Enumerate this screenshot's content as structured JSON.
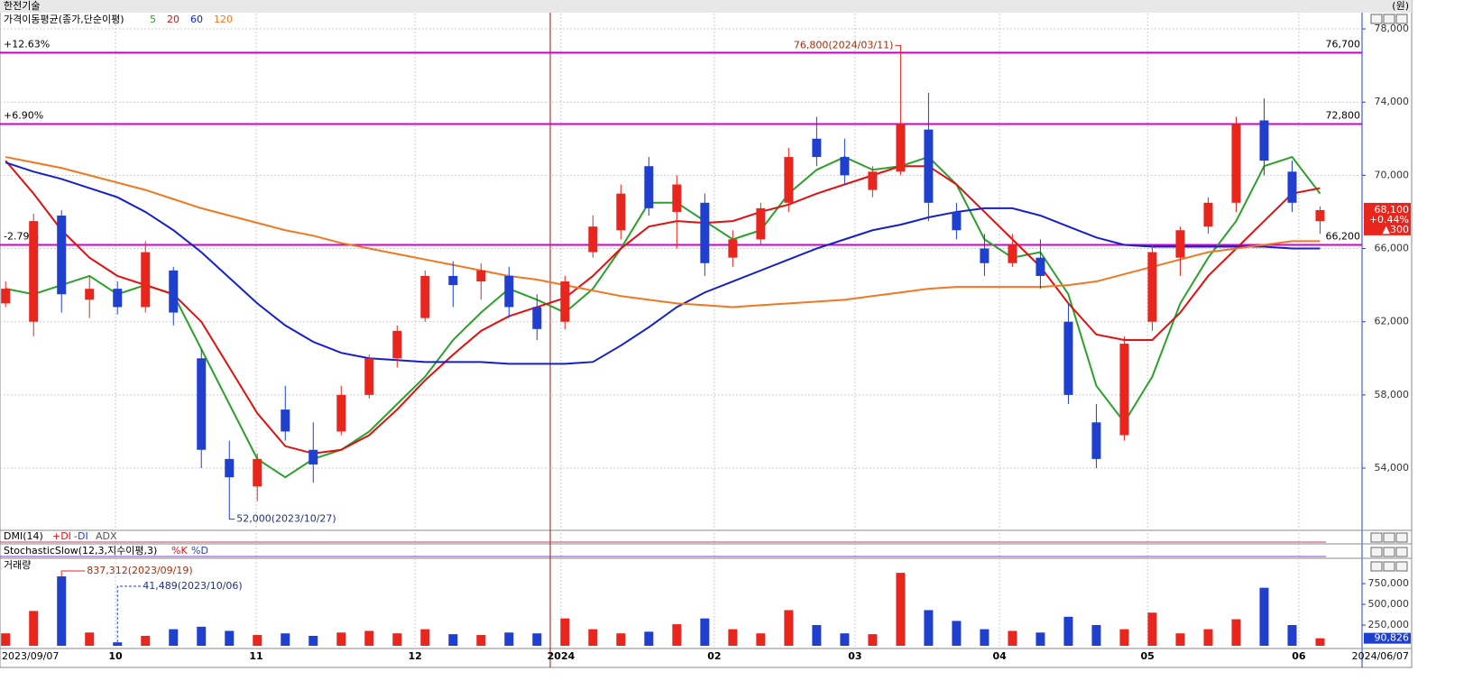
{
  "title": "한전기술",
  "unit": "(원)",
  "chart_data": {
    "type": "candlestick",
    "legend_title": "가격이동평균(종가,단순이평)",
    "xlim": [
      -0.2,
      48.5
    ],
    "xticks": [
      {
        "value": 3.93,
        "label": "10"
      },
      {
        "value": 8.96,
        "label": "11"
      },
      {
        "value": 14.64,
        "label": "12"
      },
      {
        "value": 19.86,
        "label": "2024"
      },
      {
        "value": 25.34,
        "label": "02"
      },
      {
        "value": 30.37,
        "label": "03"
      },
      {
        "value": 35.54,
        "label": "04"
      },
      {
        "value": 40.83,
        "label": "05"
      },
      {
        "value": 46.24,
        "label": "06"
      }
    ],
    "start_label": "2023/09/07",
    "end_label": "2024/06/07",
    "ylim": [
      50600,
      78840
    ],
    "yticks": [
      {
        "value": 54000,
        "label": "54,000"
      },
      {
        "value": 58000,
        "label": "58,000"
      },
      {
        "value": 62000,
        "label": "62,000"
      },
      {
        "value": 66000,
        "label": "66,000"
      },
      {
        "value": 70000,
        "label": "70,000"
      },
      {
        "value": 74000,
        "label": "74,000"
      },
      {
        "value": 78000,
        "label": "78,000"
      }
    ],
    "grid": true,
    "up_color": "#e8261e",
    "down_color": "#1f3fcf",
    "open": [
      63000,
      62000,
      67800,
      63200,
      63800,
      62800,
      64800,
      60000,
      54500,
      53000,
      57200,
      55000,
      56000,
      58000,
      60000,
      62200,
      64500,
      64200,
      64500,
      62800,
      62000,
      65800,
      67000,
      70500,
      68000,
      68500,
      65500,
      66500,
      68500,
      72000,
      71000,
      69200,
      70200,
      72500,
      68000,
      66000,
      65200,
      65500,
      62000,
      56500,
      55800,
      62000,
      65500,
      67200,
      68500,
      73000,
      70200,
      67500
    ],
    "high": [
      64200,
      67900,
      68100,
      64500,
      64200,
      66400,
      65000,
      60500,
      55500,
      54800,
      58500,
      56500,
      58500,
      60200,
      61800,
      64800,
      65300,
      65200,
      65000,
      63500,
      64500,
      67800,
      69500,
      71000,
      70000,
      69000,
      67000,
      68500,
      71500,
      73200,
      72000,
      70500,
      76800,
      74500,
      68500,
      66800,
      66800,
      66500,
      63000,
      57500,
      61200,
      66200,
      67200,
      68800,
      73200,
      74200,
      70800,
      68300
    ],
    "low": [
      62800,
      61200,
      62500,
      62200,
      62400,
      62500,
      61800,
      54000,
      52000,
      52200,
      55500,
      53200,
      55800,
      57800,
      59500,
      62000,
      62800,
      63200,
      62200,
      61000,
      61600,
      65500,
      66500,
      67800,
      66000,
      64500,
      65000,
      66200,
      68000,
      70500,
      69500,
      68800,
      70000,
      67500,
      66500,
      64500,
      65000,
      63800,
      57500,
      54000,
      55500,
      61500,
      64500,
      66800,
      68000,
      70000,
      68000,
      66800
    ],
    "close": [
      63800,
      67500,
      63500,
      63800,
      62800,
      65800,
      62500,
      55000,
      53500,
      54500,
      56000,
      54200,
      58000,
      60000,
      61500,
      64500,
      64000,
      64800,
      62800,
      61600,
      64200,
      67200,
      69000,
      68200,
      69500,
      65200,
      66500,
      68200,
      71000,
      71000,
      70000,
      70200,
      72800,
      68500,
      67000,
      65200,
      66200,
      64500,
      58000,
      54500,
      60800,
      65800,
      67000,
      68500,
      72800,
      70800,
      68500,
      68100
    ],
    "ma": [
      {
        "name": "5",
        "color": "#2ca02c",
        "values": [
          63800,
          63500,
          64000,
          64500,
          63500,
          64000,
          63500,
          60500,
          57500,
          54500,
          53500,
          54500,
          55000,
          56000,
          57500,
          59000,
          61000,
          62500,
          63800,
          63200,
          62500,
          63800,
          66000,
          68500,
          68500,
          67500,
          66500,
          67000,
          69000,
          70300,
          71000,
          70300,
          70500,
          71000,
          69500,
          66500,
          65500,
          65800,
          63500,
          58500,
          56500,
          59000,
          63000,
          65500,
          67500,
          70500,
          71000,
          69000
        ]
      },
      {
        "name": "20",
        "color": "#e01010",
        "values": [
          70800,
          69000,
          67000,
          65500,
          64500,
          64000,
          63500,
          62000,
          59500,
          57000,
          55200,
          54800,
          55000,
          55800,
          57200,
          58800,
          60200,
          61500,
          62300,
          62800,
          63300,
          64500,
          66000,
          67200,
          67500,
          67400,
          67500,
          68000,
          68400,
          69000,
          69500,
          70000,
          70500,
          70500,
          69500,
          68000,
          66500,
          65000,
          63000,
          61300,
          61000,
          61000,
          62500,
          64500,
          66000,
          67500,
          69000,
          69300
        ]
      },
      {
        "name": "60",
        "color": "#1420c8",
        "values": [
          70700,
          70200,
          69800,
          69300,
          68800,
          68000,
          67000,
          65800,
          64400,
          63000,
          61800,
          60900,
          60300,
          60000,
          59900,
          59800,
          59800,
          59800,
          59700,
          59700,
          59700,
          59800,
          60700,
          61700,
          62800,
          63600,
          64200,
          64800,
          65400,
          66000,
          66500,
          67000,
          67300,
          67700,
          68000,
          68200,
          68200,
          67800,
          67200,
          66600,
          66200,
          66100,
          66100,
          66100,
          66100,
          66100,
          66000,
          66000
        ]
      },
      {
        "name": "120",
        "color": "#f07820",
        "values": [
          71000,
          70700,
          70400,
          70000,
          69600,
          69200,
          68700,
          68200,
          67800,
          67400,
          67000,
          66700,
          66300,
          66000,
          65700,
          65400,
          65100,
          64800,
          64500,
          64300,
          64000,
          63700,
          63400,
          63200,
          63000,
          62900,
          62800,
          62900,
          63000,
          63100,
          63200,
          63400,
          63600,
          63800,
          63900,
          63900,
          63900,
          63900,
          64000,
          64200,
          64600,
          65000,
          65400,
          65800,
          66000,
          66200,
          66400,
          66400
        ]
      }
    ],
    "hlines": [
      {
        "value": 76700,
        "label": "76,700",
        "pct": "+12.63%"
      },
      {
        "value": 72800,
        "label": "72,800",
        "pct": "+6.90%"
      },
      {
        "value": 66200,
        "label": "66,200",
        "pct": "-2.79%"
      }
    ],
    "annotations": [
      {
        "index": 32,
        "value": 76800,
        "label": "76,800(2024/03/11)"
      },
      {
        "index": 8,
        "value": 52000,
        "label": "52,000(2023/10/27)"
      }
    ],
    "last": {
      "value": 68100,
      "label": "68,100",
      "pct": "+0.44%",
      "change": "▲300"
    },
    "dmi": {
      "title": "DMI(14)",
      "lines": [
        "+DI",
        "-DI",
        "ADX"
      ]
    },
    "stoch": {
      "title": "StochasticSlow(12,3,지수이평,3)",
      "lines": [
        "%K",
        "%D"
      ]
    },
    "volume": {
      "title": "거래량",
      "ylim": [
        0,
        990000
      ],
      "yticks": [
        {
          "value": 250000,
          "label": "250,000"
        },
        {
          "value": 500000,
          "label": "500,000"
        },
        {
          "value": 750000,
          "label": "750,000"
        }
      ],
      "values": [
        150000,
        420000,
        837312,
        160000,
        41489,
        120000,
        200000,
        230000,
        180000,
        130000,
        150000,
        120000,
        160000,
        180000,
        150000,
        200000,
        140000,
        130000,
        160000,
        150000,
        330000,
        200000,
        150000,
        170000,
        260000,
        330000,
        200000,
        150000,
        430000,
        250000,
        150000,
        140000,
        880000,
        430000,
        300000,
        200000,
        180000,
        160000,
        350000,
        250000,
        200000,
        400000,
        150000,
        200000,
        320000,
        700000,
        250000,
        90826
      ],
      "annotations": [
        {
          "index": 2,
          "value": 837312,
          "label": "837,312(2023/09/19)"
        },
        {
          "index": 4,
          "value": 41489,
          "label": "41,489(2023/10/06)"
        }
      ],
      "last": {
        "value": 90826,
        "label": "90,826"
      }
    }
  }
}
